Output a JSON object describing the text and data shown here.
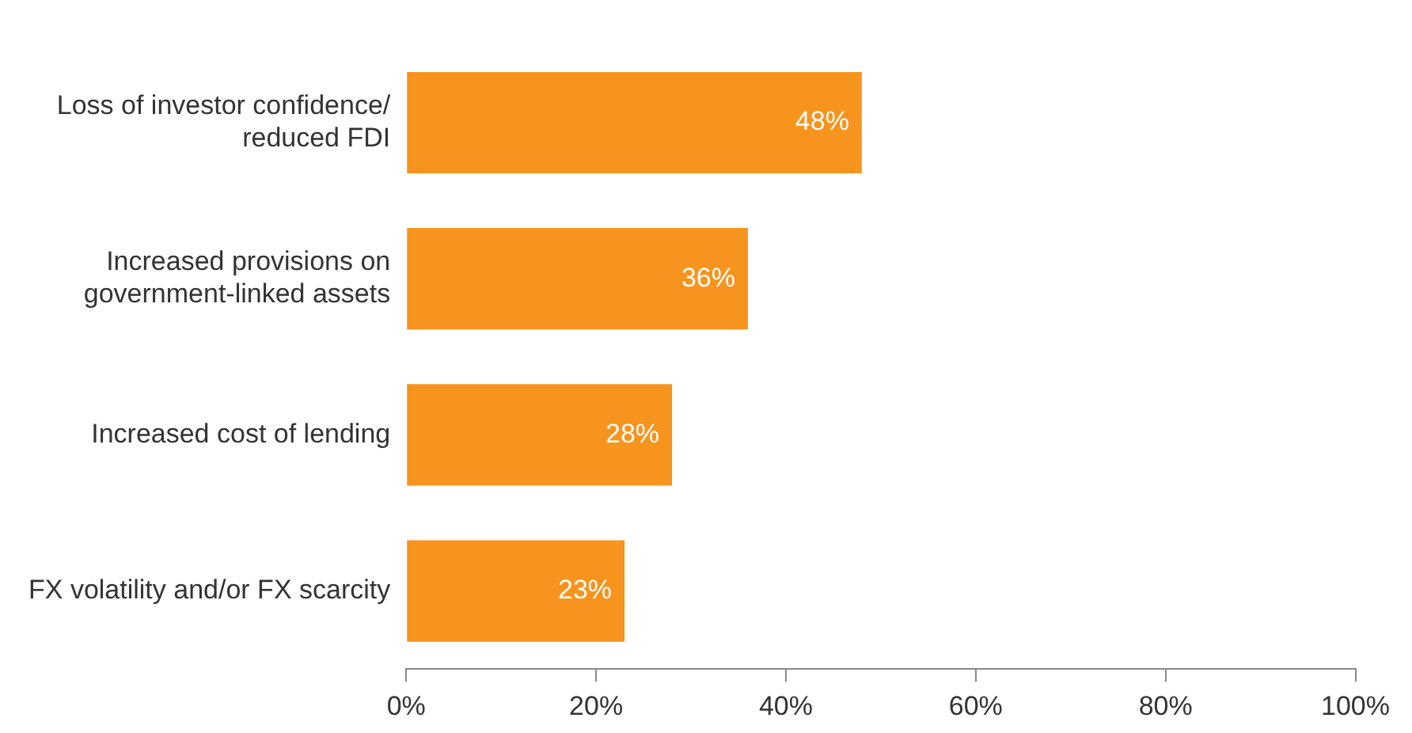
{
  "chart_data": {
    "type": "bar",
    "orientation": "horizontal",
    "categories": [
      "Loss of investor confidence/\nreduced FDI",
      "Increased provisions on\ngovernment-linked assets",
      "Increased cost of lending",
      "FX volatility and/or FX scarcity"
    ],
    "values": [
      48,
      36,
      28,
      23
    ],
    "color": "#f7941d",
    "value_labels": [
      "48%",
      "36%",
      "28%",
      "23%"
    ],
    "xlim": [
      0,
      100
    ],
    "xticks": [
      {
        "value": 0,
        "label": "0%"
      },
      {
        "value": 20,
        "label": "20%"
      },
      {
        "value": 40,
        "label": "40%"
      },
      {
        "value": 60,
        "label": "60%"
      },
      {
        "value": 80,
        "label": "80%"
      },
      {
        "value": 100,
        "label": "100%"
      }
    ],
    "grid": false,
    "legend": false
  }
}
